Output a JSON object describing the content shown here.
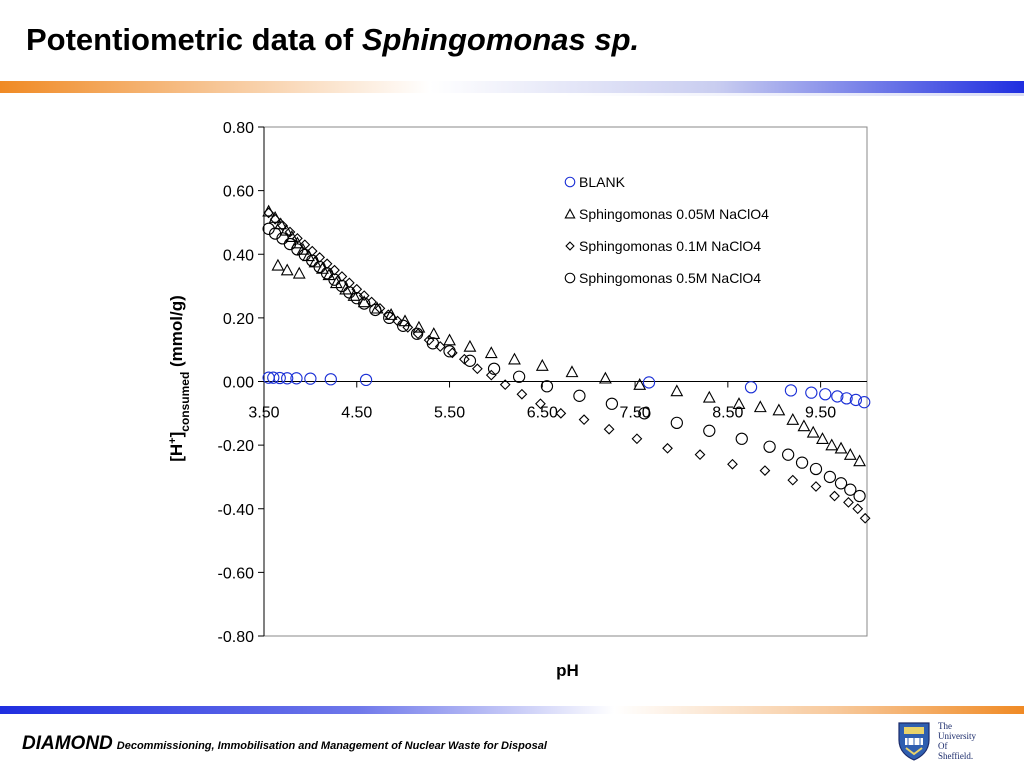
{
  "slide": {
    "title_main": "Potentiometric data of ",
    "title_italic": "Sphingomonas sp."
  },
  "footer": {
    "brand": "DIAMOND",
    "tagline": "Decommissioning, Immobilisation and Management of Nuclear Waste for Disposal"
  },
  "logo": {
    "line1": "The",
    "line2": "University",
    "line3": "Of",
    "line4": "Sheffield.",
    "icon": "university-crest-icon"
  },
  "colors": {
    "blank_series": "#1a2fd6",
    "black_series": "#000000",
    "accent_orange": "#f08a24",
    "accent_blue": "#1f2ee0"
  },
  "chart_data": {
    "type": "scatter",
    "title": "",
    "xlabel": "pH",
    "ylabel_main": "[H",
    "ylabel_sup": "+",
    "ylabel_close": "]",
    "ylabel_sub": "consumed",
    "ylabel_unit": " (mmol/g)",
    "xlim": [
      3.5,
      10.0
    ],
    "ylim": [
      -0.8,
      0.8
    ],
    "x_axis_crosses_at_y": 0,
    "xticks": [
      3.5,
      4.5,
      5.5,
      6.5,
      7.5,
      8.5,
      9.5
    ],
    "xtick_labels": [
      "3.50",
      "4.50",
      "5.50",
      "6.50",
      "7.50",
      "8.50",
      "9.50"
    ],
    "yticks": [
      0.8,
      0.6,
      0.4,
      0.2,
      0.0,
      -0.2,
      -0.4,
      -0.6,
      -0.8
    ],
    "ytick_labels": [
      "0.80",
      "0.60",
      "0.40",
      "0.20",
      "0.00",
      "-0.20",
      "-0.40",
      "-0.60",
      "-0.80"
    ],
    "grid": false,
    "legend_position": "top-right",
    "series": [
      {
        "name": "BLANK",
        "marker": "circle",
        "color": "#1a2fd6",
        "x": [
          3.55,
          3.6,
          3.67,
          3.75,
          3.85,
          4.0,
          4.22,
          4.6,
          7.65,
          8.75,
          9.18,
          9.4,
          9.55,
          9.68,
          9.78,
          9.88,
          9.97
        ],
        "y": [
          0.012,
          0.012,
          0.011,
          0.01,
          0.01,
          0.009,
          0.007,
          0.005,
          -0.003,
          -0.018,
          -0.028,
          -0.035,
          -0.04,
          -0.047,
          -0.053,
          -0.058,
          -0.065
        ]
      },
      {
        "name": "Sphingomonas 0.05M NaClO4",
        "marker": "triangle",
        "color": "#000000",
        "x": [
          3.55,
          3.62,
          3.68,
          3.74,
          3.8,
          3.86,
          3.92,
          3.98,
          4.05,
          4.13,
          4.2,
          4.28,
          4.38,
          4.47,
          4.58,
          4.72,
          4.87,
          5.02,
          5.17,
          5.33,
          5.5,
          5.72,
          5.95,
          6.2,
          6.5,
          6.82,
          7.18,
          7.55,
          7.95,
          8.3,
          8.62,
          8.85,
          9.05,
          9.2,
          9.32,
          9.42,
          9.52,
          9.62,
          9.72,
          9.82,
          9.92,
          3.65,
          3.75,
          3.88
        ],
        "y": [
          0.535,
          0.515,
          0.495,
          0.475,
          0.455,
          0.435,
          0.415,
          0.395,
          0.375,
          0.355,
          0.335,
          0.31,
          0.29,
          0.27,
          0.25,
          0.23,
          0.21,
          0.19,
          0.17,
          0.15,
          0.13,
          0.11,
          0.09,
          0.07,
          0.05,
          0.03,
          0.01,
          -0.01,
          -0.03,
          -0.05,
          -0.07,
          -0.08,
          -0.09,
          -0.12,
          -0.14,
          -0.16,
          -0.18,
          -0.2,
          -0.21,
          -0.23,
          -0.25,
          0.365,
          0.35,
          0.34
        ],
        "_": ""
      },
      {
        "name": "Sphingomonas 0.1M NaClO4",
        "marker": "diamond",
        "color": "#000000",
        "x": [
          3.55,
          3.62,
          3.7,
          3.78,
          3.86,
          3.94,
          4.02,
          4.1,
          4.18,
          4.26,
          4.34,
          4.42,
          4.5,
          4.58,
          4.66,
          4.75,
          4.84,
          4.94,
          5.05,
          5.16,
          5.28,
          5.4,
          5.53,
          5.66,
          5.8,
          5.95,
          6.1,
          6.28,
          6.48,
          6.7,
          6.95,
          7.22,
          7.52,
          7.85,
          8.2,
          8.55,
          8.9,
          9.2,
          9.45,
          9.65,
          9.8,
          9.9,
          9.98
        ],
        "y": [
          0.53,
          0.51,
          0.49,
          0.47,
          0.45,
          0.43,
          0.41,
          0.39,
          0.37,
          0.35,
          0.33,
          0.31,
          0.29,
          0.27,
          0.25,
          0.23,
          0.21,
          0.19,
          0.17,
          0.15,
          0.13,
          0.11,
          0.09,
          0.07,
          0.04,
          0.02,
          -0.01,
          -0.04,
          -0.07,
          -0.1,
          -0.12,
          -0.15,
          -0.18,
          -0.21,
          -0.23,
          -0.26,
          -0.28,
          -0.31,
          -0.33,
          -0.36,
          -0.38,
          -0.4,
          -0.43
        ]
      },
      {
        "name": "Sphingomonas 0.5M NaClO4",
        "marker": "circle",
        "color": "#000000",
        "x": [
          3.55,
          3.62,
          3.7,
          3.78,
          3.86,
          3.94,
          4.02,
          4.1,
          4.18,
          4.26,
          4.34,
          4.42,
          4.5,
          4.58,
          4.7,
          4.85,
          5.0,
          5.15,
          5.32,
          5.5,
          5.72,
          5.98,
          6.25,
          6.55,
          6.9,
          7.25,
          7.6,
          7.95,
          8.3,
          8.65,
          8.95,
          9.15,
          9.3,
          9.45,
          9.6,
          9.72,
          9.82,
          9.92
        ],
        "y": [
          0.48,
          0.465,
          0.45,
          0.432,
          0.415,
          0.398,
          0.38,
          0.36,
          0.34,
          0.32,
          0.3,
          0.28,
          0.262,
          0.245,
          0.225,
          0.2,
          0.175,
          0.15,
          0.12,
          0.095,
          0.065,
          0.04,
          0.015,
          -0.015,
          -0.045,
          -0.07,
          -0.1,
          -0.13,
          -0.155,
          -0.18,
          -0.205,
          -0.23,
          -0.255,
          -0.275,
          -0.3,
          -0.32,
          -0.34,
          -0.36
        ]
      }
    ]
  }
}
